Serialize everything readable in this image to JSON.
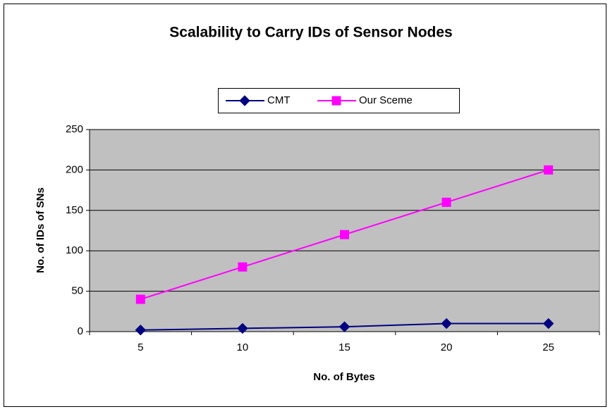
{
  "chart_data": {
    "type": "line",
    "title": "Scalability to Carry IDs of Sensor Nodes",
    "x_label": "No. of Bytes",
    "y_label": "No. of IDs of SNs",
    "categories": [
      "5",
      "10",
      "15",
      "20",
      "25"
    ],
    "series": [
      {
        "name": "CMT",
        "color": "#000080",
        "marker": "diamond",
        "values": [
          2,
          4,
          6,
          10,
          10
        ]
      },
      {
        "name": "Our Sceme",
        "color": "#ff00ff",
        "marker": "square",
        "values": [
          40,
          80,
          120,
          160,
          200
        ]
      }
    ],
    "ylim": [
      0,
      250
    ],
    "yticks": [
      0,
      50,
      100,
      150,
      200,
      250
    ],
    "grid": true,
    "legend": "top",
    "plot_background": "#c0c0c0"
  }
}
